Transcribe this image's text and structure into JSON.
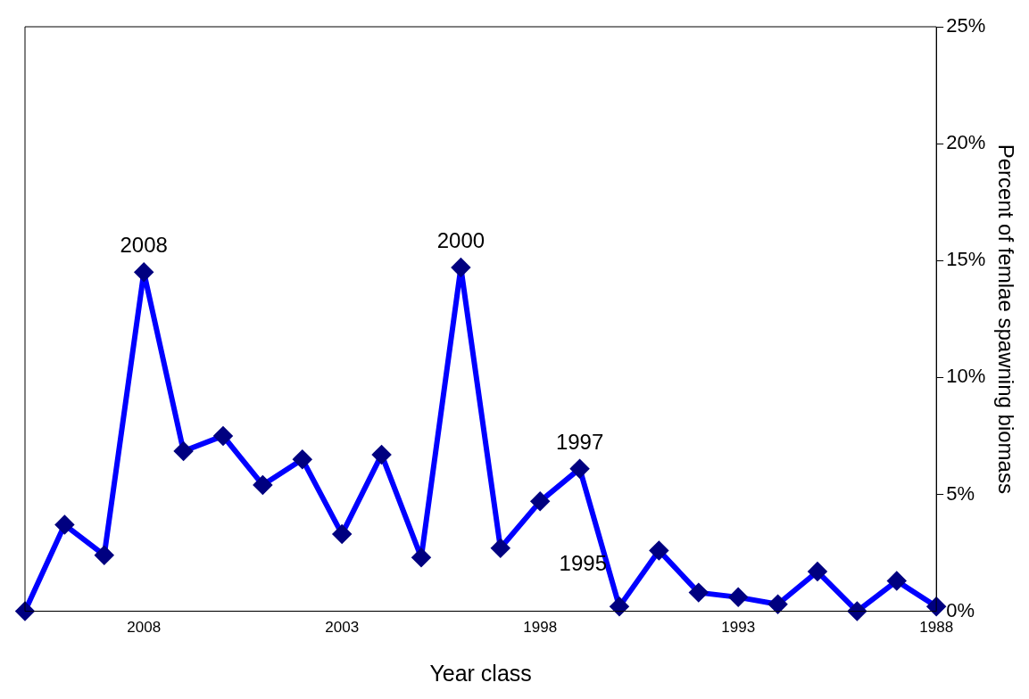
{
  "chart_data": {
    "type": "line",
    "xlabel": "Year class",
    "ylabel": "Percent of femlae spawning biomass",
    "x": [
      2011,
      2010,
      2009,
      2008,
      2007,
      2006,
      2005,
      2004,
      2003,
      2002,
      2001,
      2000,
      1999,
      1998,
      1997,
      1996,
      1995,
      1994,
      1993,
      1992,
      1991,
      1990,
      1989,
      1988
    ],
    "series": [
      {
        "color": "#0000ff",
        "values": [
          0,
          3.7,
          2.4,
          14.5,
          6.85,
          7.5,
          5.4,
          6.5,
          3.3,
          6.7,
          2.3,
          14.7,
          2.7,
          4.7,
          6.1,
          0.2,
          2.6,
          0.8,
          0.6,
          0.3,
          1.7,
          0,
          1.3,
          0.2
        ]
      }
    ],
    "xlim": [
      2011,
      1988
    ],
    "xticks": [
      2008,
      2003,
      1998,
      1993,
      1988
    ],
    "ylim": [
      0,
      25
    ],
    "yticks": [
      {
        "value": 0,
        "label": "0%"
      },
      {
        "value": 5,
        "label": "5%"
      },
      {
        "value": 10,
        "label": "10%"
      },
      {
        "value": 15,
        "label": "15%"
      },
      {
        "value": 20,
        "label": "20%"
      },
      {
        "value": 25,
        "label": "25%"
      }
    ],
    "grid": false,
    "legend": false,
    "marker": "diamond",
    "line_style": "solid",
    "annotations": [
      {
        "text": "2008",
        "x": 2008,
        "y": 14.5
      },
      {
        "text": "2000",
        "x": 2000,
        "y": 14.7
      },
      {
        "text": "1997",
        "x": 1997,
        "y": 6.1
      },
      {
        "text": "1995",
        "x": 1996,
        "y": 0.2
      }
    ]
  }
}
